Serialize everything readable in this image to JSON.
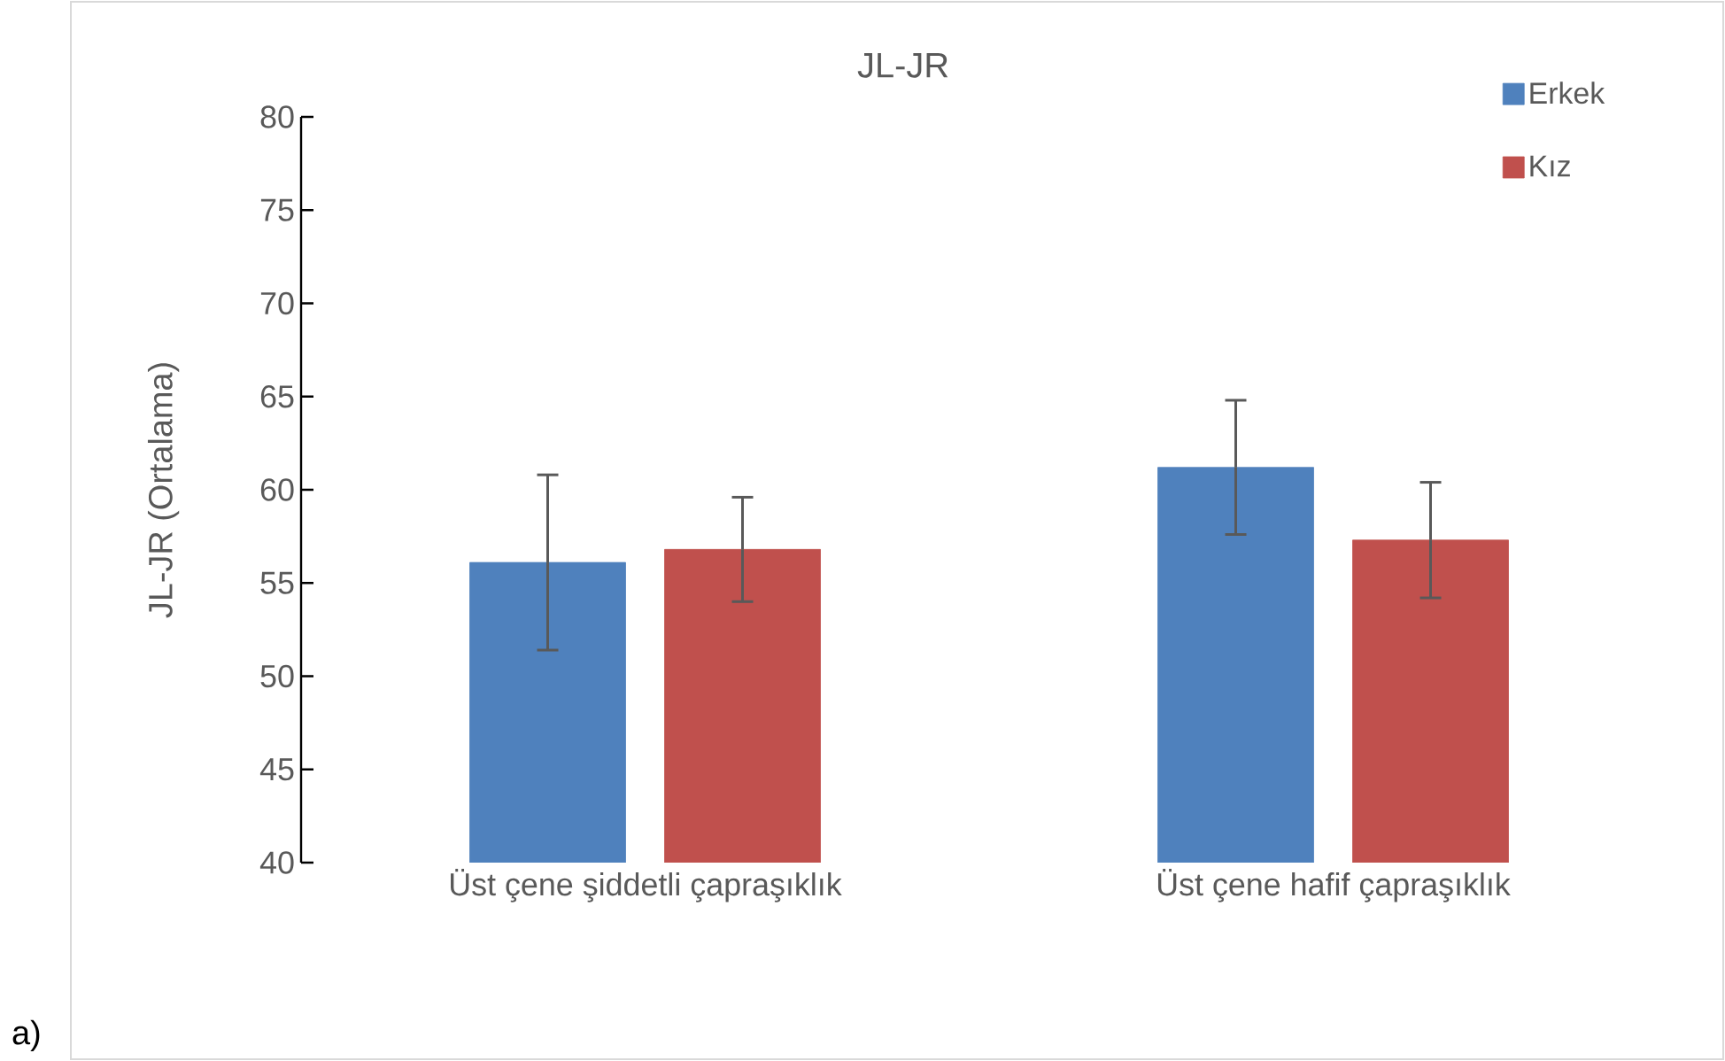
{
  "chart_data": {
    "type": "bar",
    "title": "JL-JR",
    "ylabel": "JL-JR (Ortalama)",
    "categories": [
      "Üst çene şiddetli çapraşıklık",
      "Üst çene hafif çapraşıklık"
    ],
    "series": [
      {
        "name": "Erkek",
        "color": "#4f81bd",
        "values": [
          56.1,
          61.2
        ],
        "errors": [
          4.7,
          3.6
        ]
      },
      {
        "name": "Kız",
        "color": "#c0504d",
        "values": [
          56.8,
          57.3
        ],
        "errors": [
          2.8,
          3.1
        ]
      }
    ],
    "ylim": [
      40,
      80
    ],
    "yticks": [
      40,
      45,
      50,
      55,
      60,
      65,
      70,
      75,
      80
    ],
    "legend": "top right",
    "annotations": [
      "a)"
    ]
  }
}
